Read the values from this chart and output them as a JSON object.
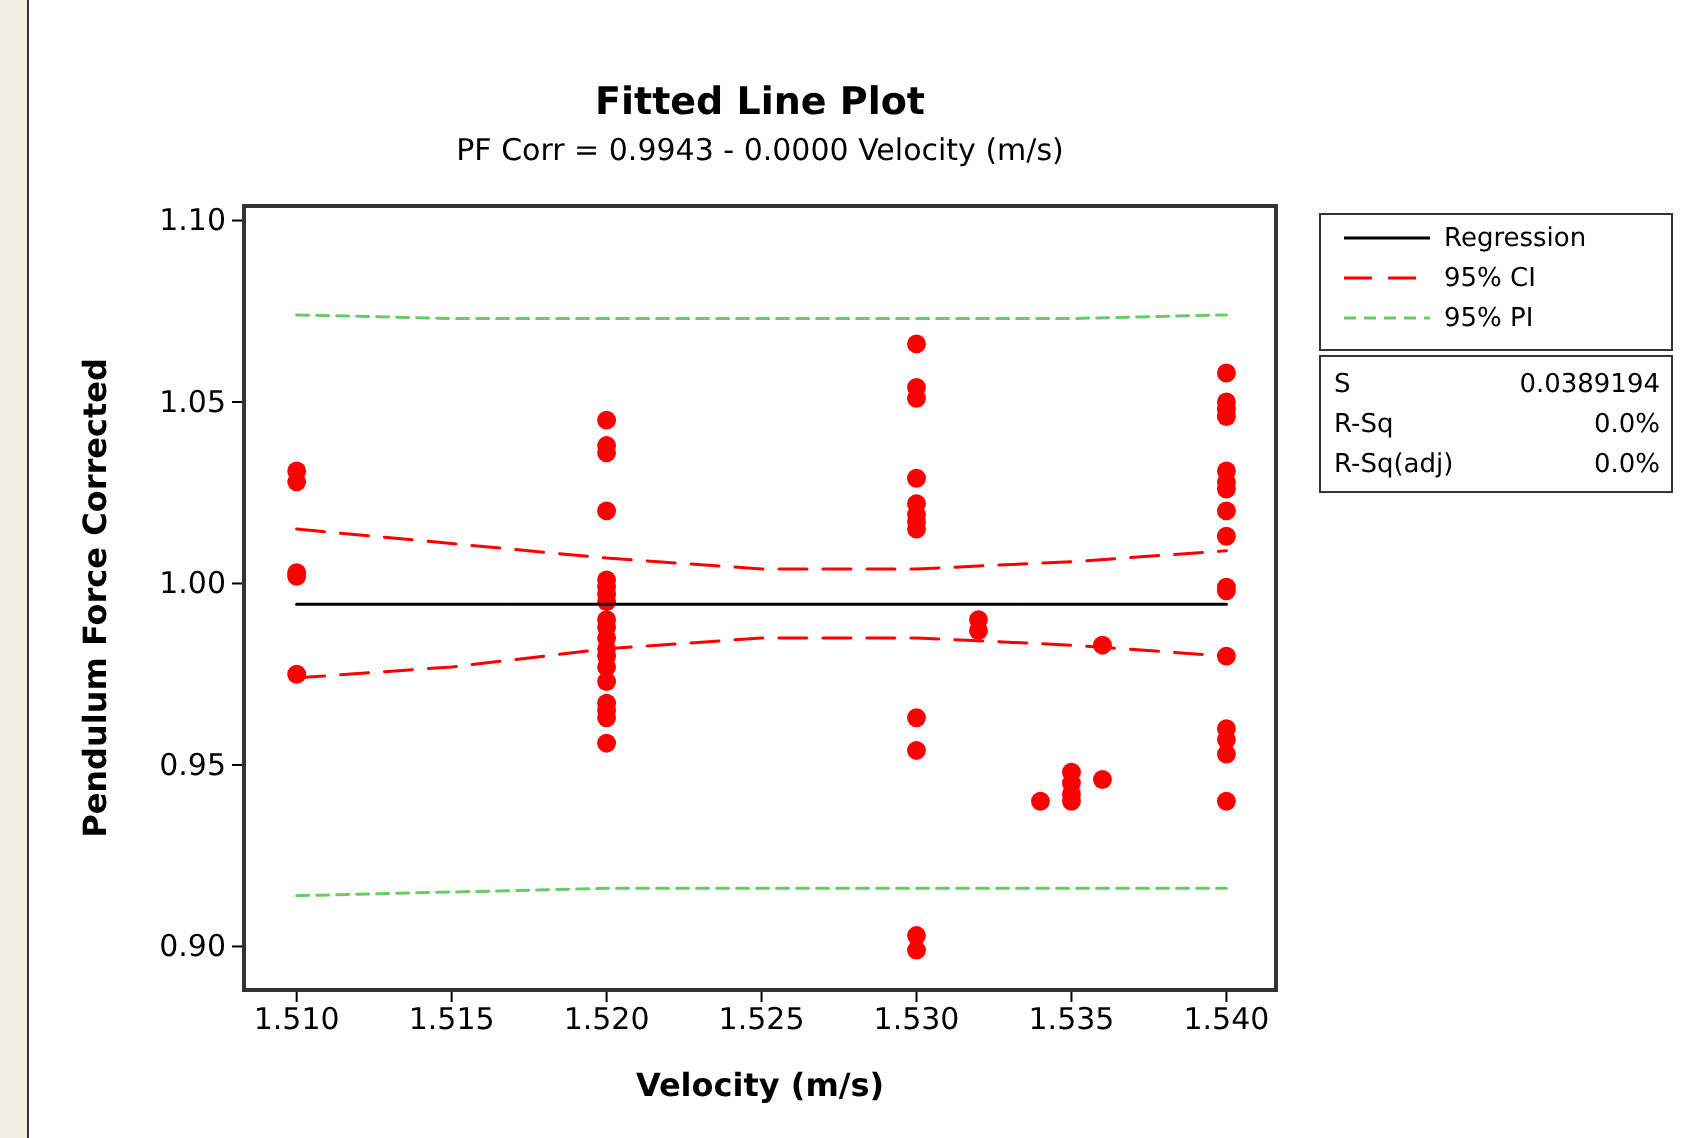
{
  "chart_data": {
    "type": "scatter",
    "title": "Fitted Line Plot",
    "subtitle": "PF Corr =  0.9943 - 0.0000 Velocity (m/s)",
    "xlabel": "Velocity (m/s)",
    "ylabel": "Pendulum Force Corrected",
    "xlim": [
      1.5083,
      1.5416
    ],
    "ylim": [
      0.888,
      1.104
    ],
    "xticks": [
      {
        "value": 1.51,
        "label": "1.510"
      },
      {
        "value": 1.515,
        "label": "1.515"
      },
      {
        "value": 1.52,
        "label": "1.520"
      },
      {
        "value": 1.525,
        "label": "1.525"
      },
      {
        "value": 1.53,
        "label": "1.530"
      },
      {
        "value": 1.535,
        "label": "1.535"
      },
      {
        "value": 1.54,
        "label": "1.540"
      }
    ],
    "yticks": [
      {
        "value": 0.9,
        "label": "0.90"
      },
      {
        "value": 0.95,
        "label": "0.95"
      },
      {
        "value": 1.0,
        "label": "1.00"
      },
      {
        "value": 1.05,
        "label": "1.05"
      },
      {
        "value": 1.1,
        "label": "1.10"
      }
    ],
    "grid": false,
    "legend": "top right",
    "marker": "circle",
    "series": [
      {
        "color": "#ff0000",
        "x": [
          1.51,
          1.51,
          1.51,
          1.51,
          1.51,
          1.52,
          1.52,
          1.52,
          1.52,
          1.52,
          1.52,
          1.52,
          1.52,
          1.52,
          1.52,
          1.52,
          1.52,
          1.52,
          1.52,
          1.52,
          1.52,
          1.52,
          1.52,
          1.52,
          1.53,
          1.53,
          1.53,
          1.53,
          1.53,
          1.53,
          1.53,
          1.53,
          1.53,
          1.53,
          1.53,
          1.53,
          1.532,
          1.532,
          1.534,
          1.535,
          1.535,
          1.535,
          1.535,
          1.536,
          1.536,
          1.54,
          1.54,
          1.54,
          1.54,
          1.54,
          1.54,
          1.54,
          1.54,
          1.54,
          1.54,
          1.54,
          1.54,
          1.54,
          1.54,
          1.54,
          1.54
        ],
        "values": [
          1.031,
          1.028,
          1.003,
          1.002,
          0.975,
          1.045,
          1.038,
          1.036,
          1.02,
          1.001,
          0.999,
          0.997,
          0.995,
          0.99,
          0.988,
          0.985,
          0.982,
          0.98,
          0.977,
          0.973,
          0.967,
          0.965,
          0.963,
          0.956,
          1.066,
          1.054,
          1.051,
          1.029,
          1.022,
          1.019,
          1.017,
          1.015,
          0.963,
          0.954,
          0.903,
          0.899,
          0.99,
          0.987,
          0.94,
          0.948,
          0.945,
          0.942,
          0.94,
          0.946,
          0.983,
          1.058,
          1.05,
          1.048,
          1.046,
          1.031,
          1.028,
          1.026,
          1.02,
          1.013,
          0.999,
          0.998,
          0.98,
          0.96,
          0.957,
          0.953,
          0.94
        ]
      },
      {
        "type": "line",
        "name": "Regression",
        "color": "#000000",
        "line_style": "solid",
        "marker": "none",
        "x": [
          1.51,
          1.54
        ],
        "values": [
          0.9943,
          0.9943
        ]
      },
      {
        "type": "line",
        "name": "95% CI",
        "color": "#ff0000",
        "line_style": "dashed",
        "marker": "none",
        "x": [
          1.51,
          1.515,
          1.52,
          1.525,
          1.53,
          1.535,
          1.54
        ],
        "values": [
          1.015,
          1.011,
          1.007,
          1.004,
          1.004,
          1.006,
          1.009
        ]
      },
      {
        "type": "line",
        "color": "#ff0000",
        "line_style": "dashed",
        "marker": "none",
        "x": [
          1.51,
          1.515,
          1.52,
          1.525,
          1.53,
          1.535,
          1.54
        ],
        "values": [
          0.974,
          0.977,
          0.982,
          0.985,
          0.985,
          0.983,
          0.98
        ]
      },
      {
        "type": "line",
        "name": "95% PI",
        "color": "#66cc66",
        "line_style": "dotted",
        "marker": "none",
        "x": [
          1.51,
          1.515,
          1.52,
          1.525,
          1.53,
          1.535,
          1.54
        ],
        "values": [
          1.074,
          1.073,
          1.073,
          1.073,
          1.073,
          1.073,
          1.074
        ]
      },
      {
        "type": "line",
        "color": "#66cc66",
        "line_style": "dotted",
        "marker": "none",
        "x": [
          1.51,
          1.515,
          1.52,
          1.525,
          1.53,
          1.535,
          1.54
        ],
        "values": [
          0.914,
          0.915,
          0.916,
          0.916,
          0.916,
          0.916,
          0.916
        ]
      }
    ],
    "annotations": [
      "S",
      "0.0389194",
      "R-Sq",
      "0.0%",
      "R-Sq(adj)",
      "0.0%"
    ]
  }
}
